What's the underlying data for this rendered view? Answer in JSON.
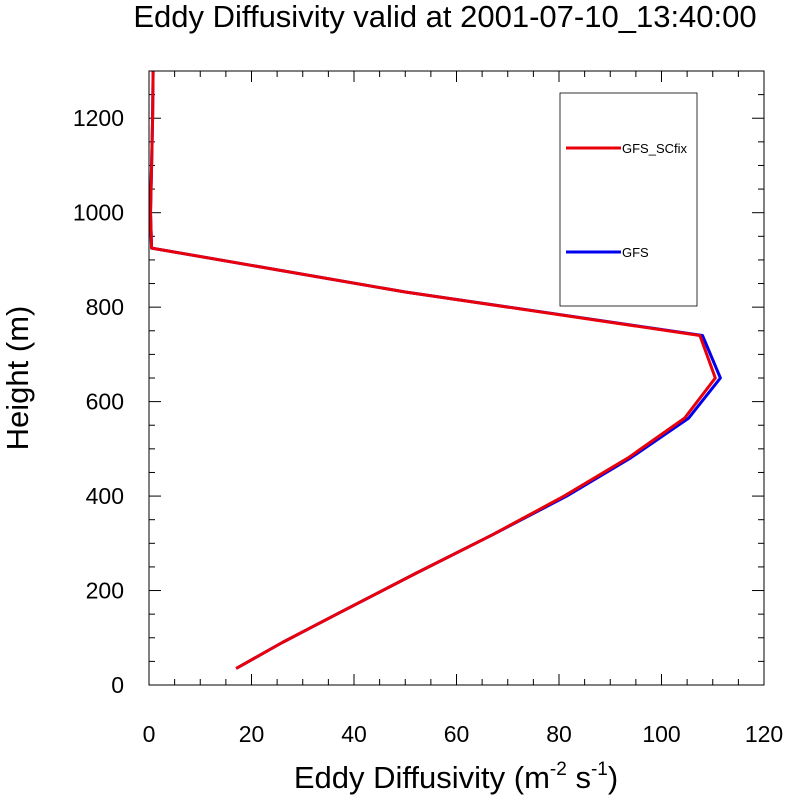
{
  "chart_data": {
    "type": "line",
    "title": "Eddy Diffusivity valid at 2001-07-10_13:40:00",
    "xlabel": {
      "main": "Eddy Diffusivity (m",
      "sup1": "-2",
      "mid": " s",
      "sup2": "-1",
      "end": ")"
    },
    "ylabel": "Height (m)",
    "xlim": [
      0,
      120
    ],
    "ylim": [
      0,
      1300
    ],
    "xticks": [
      0,
      20,
      40,
      60,
      80,
      100,
      120
    ],
    "yticks": [
      0,
      200,
      400,
      600,
      800,
      1000,
      1200
    ],
    "legend_placement": "top-right",
    "grid": false,
    "series": [
      {
        "name": "GFS_SCfix",
        "color": "#e8000b",
        "points": [
          [
            17,
            35
          ],
          [
            26,
            90
          ],
          [
            37,
            152
          ],
          [
            52,
            236
          ],
          [
            67,
            318
          ],
          [
            81,
            400
          ],
          [
            93.5,
            481
          ],
          [
            104.5,
            565
          ],
          [
            110.5,
            650
          ],
          [
            107.5,
            740
          ],
          [
            50,
            832
          ],
          [
            0.5,
            925
          ],
          [
            0.3,
            1000
          ],
          [
            0.5,
            1100
          ],
          [
            0.7,
            1200
          ],
          [
            0.8,
            1300
          ]
        ]
      },
      {
        "name": "GFS",
        "color": "#0000ee",
        "points": [
          [
            17,
            35
          ],
          [
            26,
            90
          ],
          [
            37,
            152
          ],
          [
            52,
            236
          ],
          [
            67,
            318
          ],
          [
            81.5,
            400
          ],
          [
            94,
            481
          ],
          [
            105.3,
            565
          ],
          [
            111.5,
            650
          ],
          [
            108,
            740
          ],
          [
            50,
            832
          ],
          [
            0.5,
            925
          ],
          [
            0.3,
            1000
          ],
          [
            0.5,
            1100
          ],
          [
            0.7,
            1200
          ],
          [
            0.8,
            1300
          ]
        ]
      }
    ]
  }
}
